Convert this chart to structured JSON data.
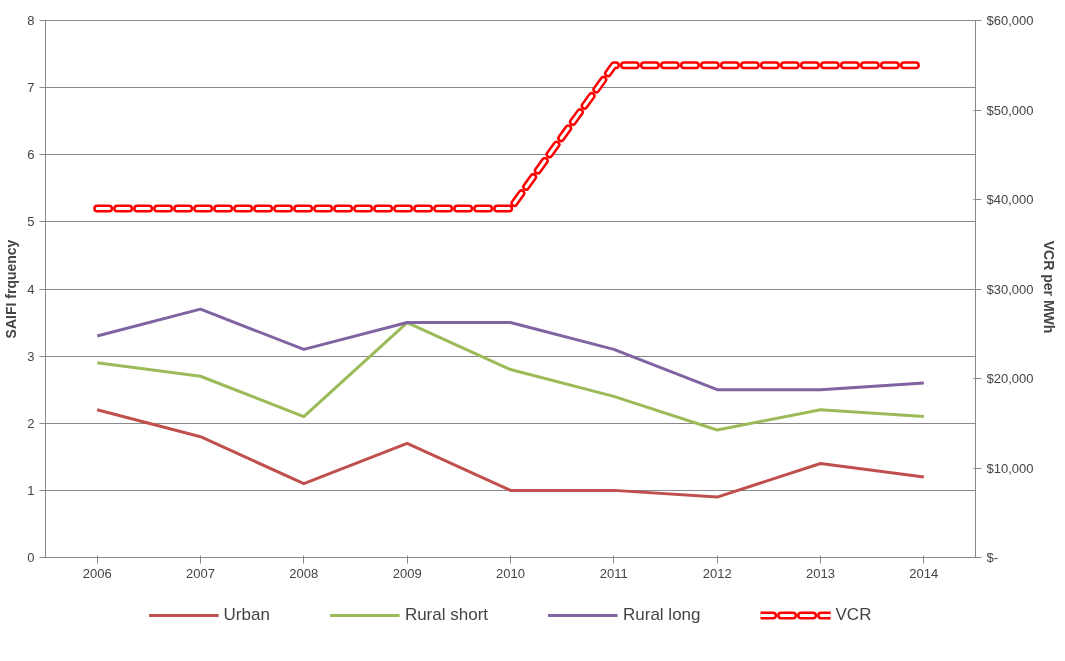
{
  "chart_data": {
    "type": "line",
    "ylabel": "SAIFI frquency",
    "y2label": "VCR  per MWh",
    "categories": [
      "2006",
      "2007",
      "2008",
      "2009",
      "2010",
      "2011",
      "2012",
      "2013",
      "2014"
    ],
    "series": [
      {
        "name": "Urban",
        "color": "#c0504d",
        "values": [
          2.2,
          1.8,
          1.1,
          1.7,
          1.0,
          1.0,
          0.9,
          1.4,
          1.2
        ]
      },
      {
        "name": "Rural short",
        "color": "#9bbb59",
        "values": [
          2.9,
          2.7,
          2.1,
          3.5,
          2.8,
          2.4,
          1.9,
          2.2,
          2.1
        ]
      },
      {
        "name": "Rural long",
        "color": "#8064a2",
        "values": [
          3.3,
          3.7,
          3.1,
          3.5,
          3.5,
          3.1,
          2.5,
          2.5,
          2.6
        ]
      },
      {
        "name": "VCR",
        "color": "#ff0000",
        "axis": "y2",
        "line_style": "dashed",
        "values": [
          39000,
          39000,
          39000,
          39000,
          39000,
          55000,
          55000,
          55000,
          55000
        ]
      }
    ],
    "ylim": [
      0,
      8
    ],
    "yticks": [
      0,
      1,
      2,
      3,
      4,
      5,
      6,
      7,
      8
    ],
    "y2lim": [
      0,
      60000
    ],
    "y2ticks": [
      {
        "value": 0,
        "label": "$-"
      },
      {
        "value": 10000,
        "label": "$10,000"
      },
      {
        "value": 20000,
        "label": "$20,000"
      },
      {
        "value": 30000,
        "label": "$30,000"
      },
      {
        "value": 40000,
        "label": "$40,000"
      },
      {
        "value": 50000,
        "label": "$50,000"
      },
      {
        "value": 60000,
        "label": "$60,000"
      }
    ],
    "grid": "y",
    "legend": "bottom",
    "marker": "none"
  }
}
